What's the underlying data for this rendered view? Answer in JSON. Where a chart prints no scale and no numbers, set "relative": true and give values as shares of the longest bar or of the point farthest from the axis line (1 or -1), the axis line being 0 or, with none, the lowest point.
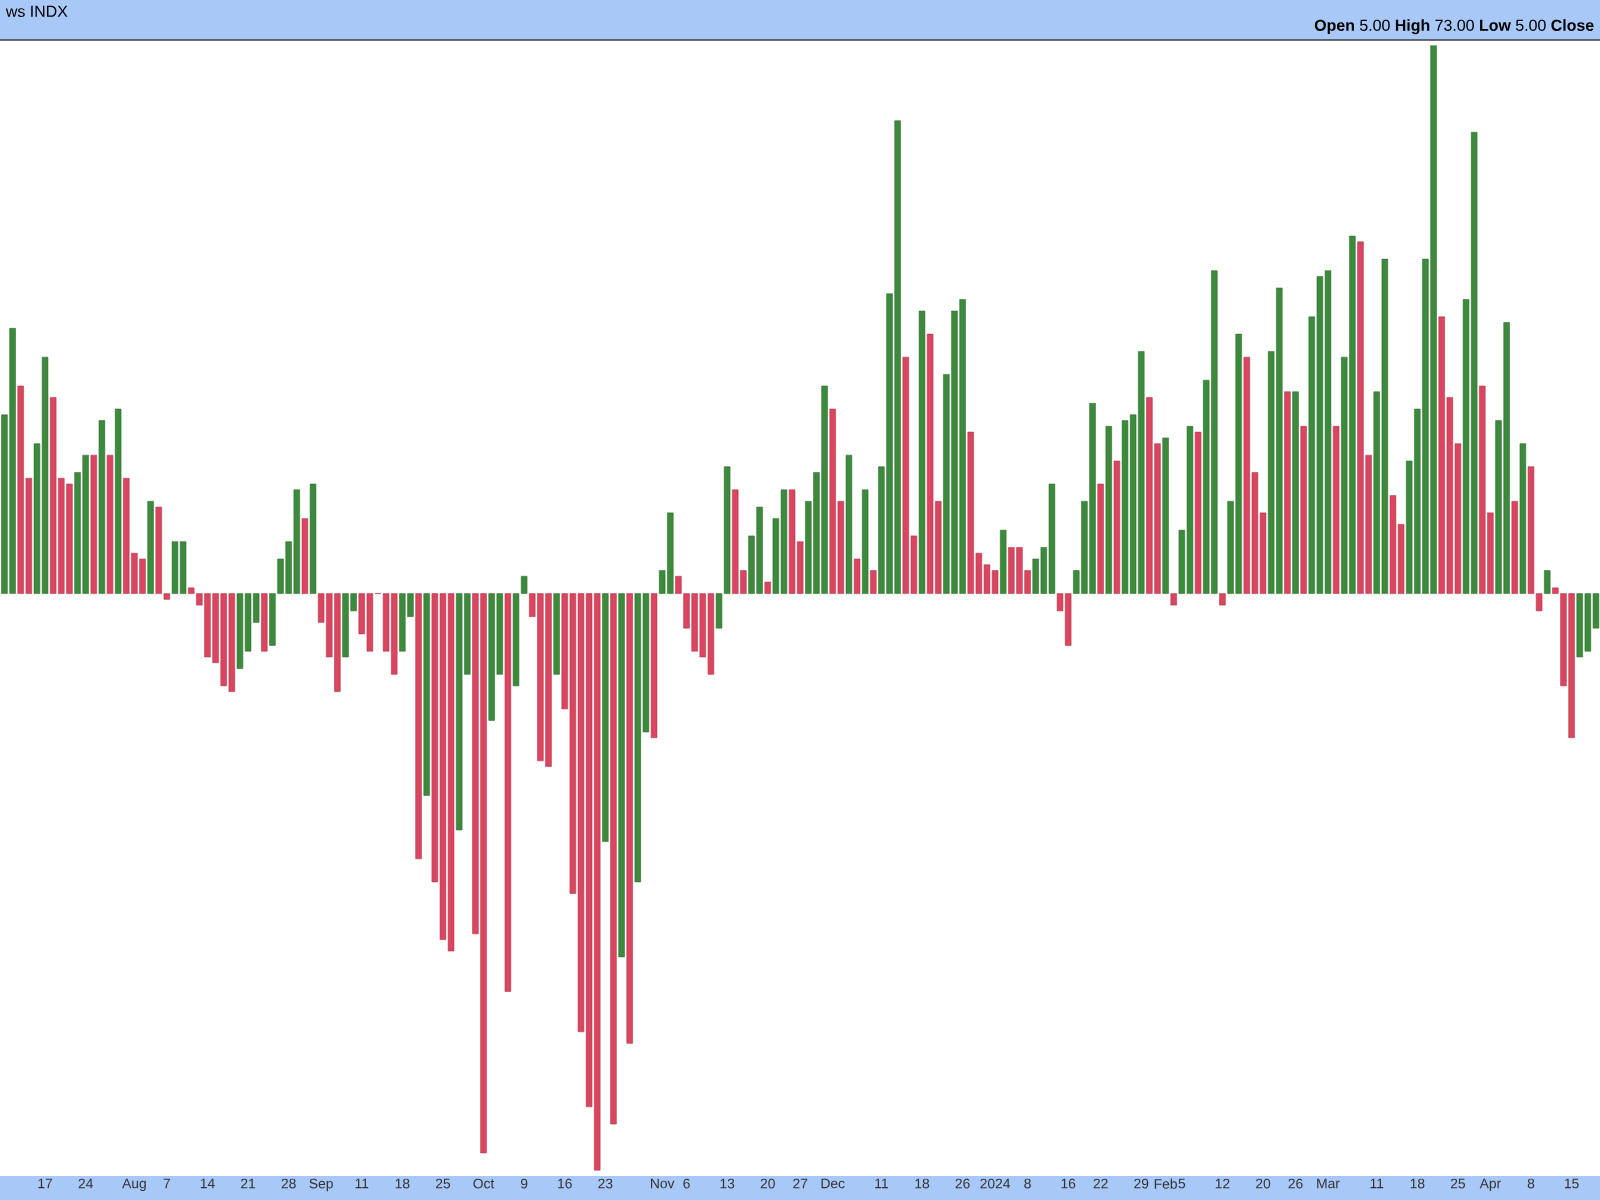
{
  "chart_data": {
    "type": "bar",
    "relative": true,
    "title": "ws INDX",
    "annotations": [
      "**Open** 5.00 **High** 73.00 **Low** 5.00 **Close**"
    ],
    "categories": [
      null,
      null,
      null,
      null,
      null,
      "17",
      null,
      null,
      null,
      null,
      "24",
      null,
      null,
      null,
      null,
      null,
      "Aug",
      null,
      null,
      null,
      "7",
      null,
      null,
      null,
      null,
      "14",
      null,
      null,
      null,
      null,
      "21",
      null,
      null,
      null,
      null,
      "28",
      null,
      null,
      null,
      "Sep",
      null,
      null,
      null,
      null,
      "11",
      null,
      null,
      null,
      null,
      "18",
      null,
      null,
      null,
      null,
      "25",
      null,
      null,
      null,
      null,
      "Oct",
      null,
      null,
      null,
      null,
      "9",
      null,
      null,
      null,
      null,
      "16",
      null,
      null,
      null,
      null,
      "23",
      null,
      null,
      null,
      null,
      null,
      null,
      "Nov",
      null,
      null,
      "6",
      null,
      null,
      null,
      null,
      "13",
      null,
      null,
      null,
      null,
      "20",
      null,
      null,
      null,
      "27",
      null,
      null,
      null,
      "Dec",
      null,
      null,
      null,
      null,
      null,
      "11",
      null,
      null,
      null,
      null,
      "18",
      null,
      null,
      null,
      null,
      "26",
      null,
      null,
      null,
      "2024",
      null,
      null,
      null,
      "8",
      null,
      null,
      null,
      null,
      "16",
      null,
      null,
      null,
      "22",
      null,
      null,
      null,
      null,
      "29",
      null,
      null,
      "Feb",
      null,
      "5",
      null,
      null,
      null,
      null,
      "12",
      null,
      null,
      null,
      null,
      "20",
      null,
      null,
      null,
      "26",
      null,
      null,
      null,
      "Mar",
      null,
      null,
      null,
      null,
      null,
      "11",
      null,
      null,
      null,
      null,
      "18",
      null,
      null,
      null,
      null,
      "25",
      null,
      null,
      null,
      "Apr",
      null,
      null,
      null,
      null,
      "8",
      null,
      null,
      null,
      null,
      "15",
      null,
      null,
      null
    ],
    "values": [
      0.31,
      0.46,
      0.36,
      0.2,
      0.26,
      0.41,
      0.34,
      0.2,
      0.19,
      0.21,
      0.24,
      0.24,
      0.3,
      0.24,
      0.32,
      0.2,
      0.07,
      0.06,
      0.16,
      0.15,
      -0.01,
      0.09,
      0.09,
      0.01,
      -0.02,
      -0.11,
      -0.12,
      -0.16,
      -0.17,
      -0.13,
      -0.1,
      -0.05,
      -0.1,
      -0.09,
      0.06,
      0.09,
      0.18,
      0.13,
      0.19,
      -0.05,
      -0.11,
      -0.17,
      -0.11,
      -0.03,
      -0.07,
      -0.1,
      0,
      -0.1,
      -0.14,
      -0.1,
      -0.04,
      -0.46,
      -0.35,
      -0.5,
      -0.6,
      -0.62,
      -0.41,
      -0.14,
      -0.59,
      -0.97,
      -0.22,
      -0.14,
      -0.69,
      -0.16,
      0.03,
      -0.04,
      -0.29,
      -0.3,
      -0.14,
      -0.2,
      -0.52,
      -0.76,
      -0.89,
      -1,
      -0.43,
      -0.92,
      -0.63,
      -0.78,
      -0.5,
      -0.24,
      -0.25,
      0.04,
      0.14,
      0.03,
      -0.06,
      -0.1,
      -0.11,
      -0.14,
      -0.06,
      0.22,
      0.18,
      0.04,
      0.1,
      0.15,
      0.02,
      0.13,
      0.18,
      0.18,
      0.09,
      0.16,
      0.21,
      0.36,
      0.32,
      0.16,
      0.24,
      0.06,
      0.18,
      0.04,
      0.22,
      0.52,
      0.82,
      0.41,
      0.1,
      0.49,
      0.45,
      0.16,
      0.38,
      0.49,
      0.51,
      0.28,
      0.07,
      0.05,
      0.04,
      0.11,
      0.08,
      0.08,
      0.04,
      0.06,
      0.08,
      0.19,
      -0.03,
      -0.09,
      0.04,
      0.16,
      0.33,
      0.19,
      0.29,
      0.23,
      0.3,
      0.31,
      0.42,
      0.34,
      0.26,
      0.27,
      -0.02,
      0.11,
      0.29,
      0.28,
      0.37,
      0.56,
      -0.02,
      0.16,
      0.45,
      0.41,
      0.21,
      0.14,
      0.42,
      0.53,
      0.35,
      0.35,
      0.29,
      0.48,
      0.55,
      0.56,
      0.29,
      0.41,
      0.62,
      0.61,
      0.24,
      0.35,
      0.58,
      0.17,
      0.12,
      0.23,
      0.32,
      0.58,
      0.95,
      0.48,
      0.34,
      0.26,
      0.51,
      0.8,
      0.36,
      0.14,
      0.3,
      0.47,
      0.16,
      0.26,
      0.22,
      -0.03,
      0.04,
      0.01,
      -0.16,
      -0.25,
      -0.11,
      -0.1,
      -0.06
    ],
    "colors": [
      "#3c8a3c",
      "#3c8a3c",
      "#dc4560",
      "#dc4560",
      "#3c8a3c",
      "#3c8a3c",
      "#dc4560",
      "#dc4560",
      "#dc4560",
      "#3c8a3c",
      "#3c8a3c",
      "#dc4560",
      "#3c8a3c",
      "#dc4560",
      "#3c8a3c",
      "#dc4560",
      "#dc4560",
      "#dc4560",
      "#3c8a3c",
      "#dc4560",
      "#dc4560",
      "#3c8a3c",
      "#3c8a3c",
      "#dc4560",
      "#dc4560",
      "#dc4560",
      "#dc4560",
      "#dc4560",
      "#dc4560",
      "#3c8a3c",
      "#3c8a3c",
      "#3c8a3c",
      "#dc4560",
      "#3c8a3c",
      "#3c8a3c",
      "#3c8a3c",
      "#3c8a3c",
      "#dc4560",
      "#3c8a3c",
      "#dc4560",
      "#dc4560",
      "#dc4560",
      "#3c8a3c",
      "#3c8a3c",
      "#dc4560",
      "#dc4560",
      "#dc4560",
      "#dc4560",
      "#dc4560",
      "#3c8a3c",
      "#3c8a3c",
      "#dc4560",
      "#3c8a3c",
      "#dc4560",
      "#dc4560",
      "#dc4560",
      "#3c8a3c",
      "#3c8a3c",
      "#dc4560",
      "#dc4560",
      "#3c8a3c",
      "#3c8a3c",
      "#dc4560",
      "#3c8a3c",
      "#3c8a3c",
      "#dc4560",
      "#dc4560",
      "#dc4560",
      "#3c8a3c",
      "#dc4560",
      "#dc4560",
      "#dc4560",
      "#dc4560",
      "#dc4560",
      "#3c8a3c",
      "#dc4560",
      "#3c8a3c",
      "#dc4560",
      "#3c8a3c",
      "#3c8a3c",
      "#dc4560",
      "#3c8a3c",
      "#3c8a3c",
      "#dc4560",
      "#dc4560",
      "#dc4560",
      "#dc4560",
      "#dc4560",
      "#3c8a3c",
      "#3c8a3c",
      "#dc4560",
      "#dc4560",
      "#3c8a3c",
      "#3c8a3c",
      "#dc4560",
      "#3c8a3c",
      "#3c8a3c",
      "#dc4560",
      "#dc4560",
      "#3c8a3c",
      "#3c8a3c",
      "#3c8a3c",
      "#dc4560",
      "#dc4560",
      "#3c8a3c",
      "#dc4560",
      "#3c8a3c",
      "#dc4560",
      "#3c8a3c",
      "#3c8a3c",
      "#3c8a3c",
      "#dc4560",
      "#dc4560",
      "#3c8a3c",
      "#dc4560",
      "#dc4560",
      "#3c8a3c",
      "#3c8a3c",
      "#3c8a3c",
      "#dc4560",
      "#dc4560",
      "#dc4560",
      "#dc4560",
      "#3c8a3c",
      "#dc4560",
      "#dc4560",
      "#dc4560",
      "#3c8a3c",
      "#3c8a3c",
      "#3c8a3c",
      "#dc4560",
      "#dc4560",
      "#3c8a3c",
      "#3c8a3c",
      "#3c8a3c",
      "#dc4560",
      "#3c8a3c",
      "#dc4560",
      "#3c8a3c",
      "#3c8a3c",
      "#3c8a3c",
      "#dc4560",
      "#dc4560",
      "#3c8a3c",
      "#dc4560",
      "#3c8a3c",
      "#3c8a3c",
      "#dc4560",
      "#3c8a3c",
      "#3c8a3c",
      "#dc4560",
      "#3c8a3c",
      "#3c8a3c",
      "#dc4560",
      "#dc4560",
      "#dc4560",
      "#3c8a3c",
      "#3c8a3c",
      "#dc4560",
      "#3c8a3c",
      "#dc4560",
      "#3c8a3c",
      "#3c8a3c",
      "#3c8a3c",
      "#dc4560",
      "#3c8a3c",
      "#3c8a3c",
      "#dc4560",
      "#dc4560",
      "#3c8a3c",
      "#3c8a3c",
      "#dc4560",
      "#dc4560",
      "#3c8a3c",
      "#3c8a3c",
      "#3c8a3c",
      "#3c8a3c",
      "#dc4560",
      "#dc4560",
      "#dc4560",
      "#3c8a3c",
      "#3c8a3c",
      "#dc4560",
      "#dc4560",
      "#3c8a3c",
      "#3c8a3c",
      "#dc4560",
      "#3c8a3c",
      "#dc4560",
      "#dc4560",
      "#3c8a3c",
      "#dc4560",
      "#dc4560",
      "#dc4560",
      "#3c8a3c",
      "#3c8a3c",
      "#3c8a3c"
    ]
  }
}
